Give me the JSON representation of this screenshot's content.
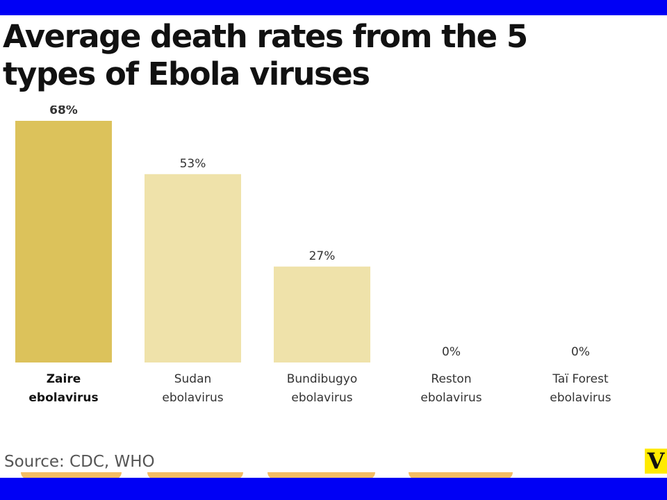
{
  "title": "Average death rates from the 5 types of Ebola viruses",
  "source": "Source: CDC, WHO",
  "logo": "V",
  "colors": {
    "frame": "#0000f5",
    "highlight": "#dcc25b",
    "bar": "#efe2aa",
    "text": "#333333"
  },
  "chart_data": {
    "type": "bar",
    "title": "Average death rates from the 5 types of Ebola viruses",
    "categories": [
      [
        "Zaire",
        "ebolavirus"
      ],
      [
        "Sudan",
        "ebolavirus"
      ],
      [
        "Bundibugyo",
        "ebolavirus"
      ],
      [
        "Reston",
        "ebolavirus"
      ],
      [
        "Taï Forest",
        "ebolavirus"
      ]
    ],
    "values": [
      68,
      53,
      27,
      0,
      0
    ],
    "value_labels": [
      "68%",
      "53%",
      "27%",
      "0%",
      "0%"
    ],
    "highlighted": [
      0
    ],
    "ylim": [
      0,
      70
    ],
    "grid": false,
    "xlabel": "",
    "ylabel": ""
  }
}
